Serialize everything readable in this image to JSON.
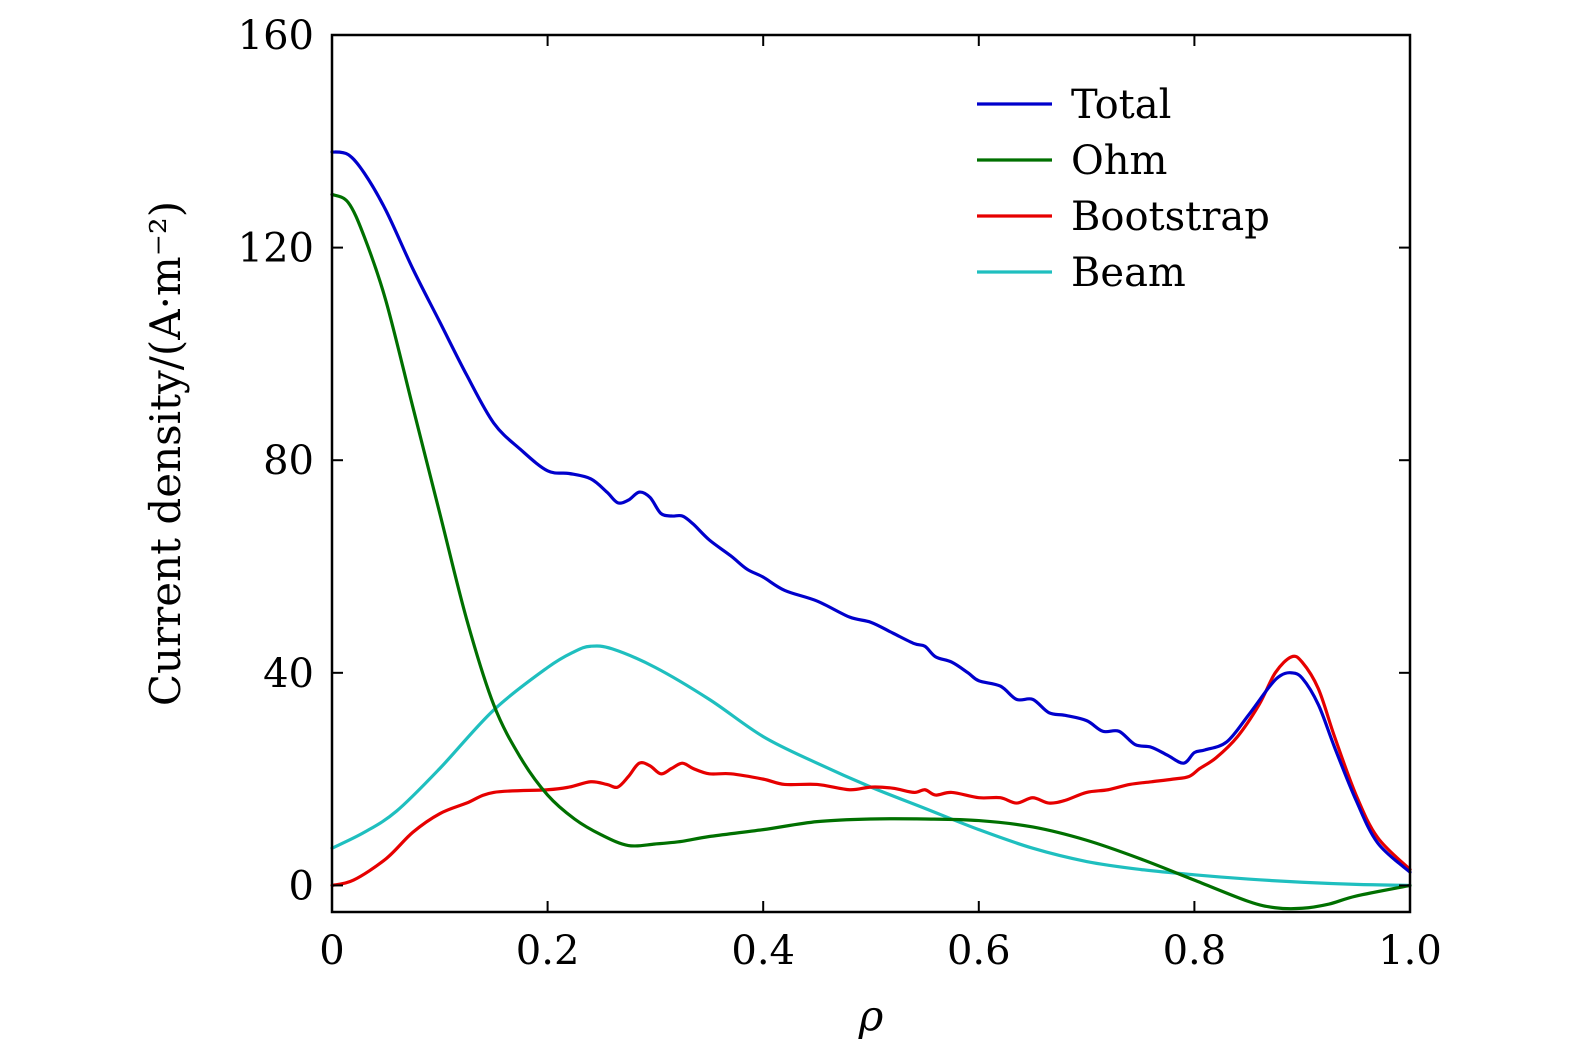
{
  "chart_data": {
    "type": "line",
    "title": "",
    "xlabel": "ρ",
    "ylabel": "Current density/(A·m⁻²)",
    "xlim": [
      0,
      1.0
    ],
    "ylim": [
      -5,
      160
    ],
    "xticks": [
      "0",
      "0.2",
      "0.4",
      "0.6",
      "0.8",
      "1.0"
    ],
    "xtick_values": [
      0,
      0.2,
      0.4,
      0.6,
      0.8,
      1.0
    ],
    "yticks": [
      "0",
      "40",
      "80",
      "120",
      "160"
    ],
    "ytick_values": [
      0,
      40,
      80,
      120,
      160
    ],
    "grid": false,
    "legend_position": "top-right",
    "series": [
      {
        "name": "Total",
        "color": "#0000cc",
        "points": [
          [
            0,
            138
          ],
          [
            0.015,
            137.5
          ],
          [
            0.03,
            134
          ],
          [
            0.05,
            127
          ],
          [
            0.075,
            116
          ],
          [
            0.1,
            106
          ],
          [
            0.125,
            96
          ],
          [
            0.15,
            87
          ],
          [
            0.175,
            82
          ],
          [
            0.2,
            78
          ],
          [
            0.22,
            77.5
          ],
          [
            0.24,
            76.5
          ],
          [
            0.255,
            74
          ],
          [
            0.265,
            72
          ],
          [
            0.275,
            72.5
          ],
          [
            0.285,
            74
          ],
          [
            0.295,
            73
          ],
          [
            0.305,
            70
          ],
          [
            0.315,
            69.5
          ],
          [
            0.325,
            69.5
          ],
          [
            0.335,
            68
          ],
          [
            0.35,
            65
          ],
          [
            0.37,
            62
          ],
          [
            0.385,
            59.5
          ],
          [
            0.4,
            58
          ],
          [
            0.42,
            55.5
          ],
          [
            0.45,
            53.5
          ],
          [
            0.48,
            50.5
          ],
          [
            0.5,
            49.5
          ],
          [
            0.52,
            47.5
          ],
          [
            0.54,
            45.5
          ],
          [
            0.55,
            45
          ],
          [
            0.56,
            43
          ],
          [
            0.575,
            42
          ],
          [
            0.59,
            40
          ],
          [
            0.6,
            38.5
          ],
          [
            0.62,
            37.5
          ],
          [
            0.635,
            35
          ],
          [
            0.65,
            35
          ],
          [
            0.665,
            32.5
          ],
          [
            0.68,
            32
          ],
          [
            0.7,
            31
          ],
          [
            0.715,
            29
          ],
          [
            0.73,
            29
          ],
          [
            0.745,
            26.5
          ],
          [
            0.76,
            26
          ],
          [
            0.775,
            24.5
          ],
          [
            0.79,
            23
          ],
          [
            0.8,
            25
          ],
          [
            0.81,
            25.5
          ],
          [
            0.83,
            27
          ],
          [
            0.85,
            32
          ],
          [
            0.87,
            37.5
          ],
          [
            0.88,
            39.5
          ],
          [
            0.89,
            40
          ],
          [
            0.9,
            39
          ],
          [
            0.915,
            34
          ],
          [
            0.93,
            26
          ],
          [
            0.95,
            16
          ],
          [
            0.97,
            8
          ],
          [
            1.0,
            2.5
          ]
        ]
      },
      {
        "name": "Ohm",
        "color": "#007000",
        "points": [
          [
            0,
            130
          ],
          [
            0.015,
            128.5
          ],
          [
            0.03,
            122
          ],
          [
            0.05,
            110
          ],
          [
            0.075,
            90
          ],
          [
            0.1,
            70
          ],
          [
            0.125,
            50
          ],
          [
            0.15,
            34
          ],
          [
            0.175,
            24
          ],
          [
            0.2,
            17
          ],
          [
            0.225,
            12.5
          ],
          [
            0.25,
            9.5
          ],
          [
            0.275,
            7.5
          ],
          [
            0.3,
            7.8
          ],
          [
            0.325,
            8.3
          ],
          [
            0.35,
            9.2
          ],
          [
            0.4,
            10.5
          ],
          [
            0.45,
            12
          ],
          [
            0.5,
            12.5
          ],
          [
            0.55,
            12.5
          ],
          [
            0.6,
            12.2
          ],
          [
            0.65,
            11
          ],
          [
            0.7,
            8.5
          ],
          [
            0.75,
            5
          ],
          [
            0.8,
            1
          ],
          [
            0.85,
            -3
          ],
          [
            0.875,
            -4.2
          ],
          [
            0.9,
            -4.3
          ],
          [
            0.925,
            -3.5
          ],
          [
            0.95,
            -2
          ],
          [
            1.0,
            0
          ]
        ]
      },
      {
        "name": "Bootstrap",
        "color": "#e60000",
        "points": [
          [
            0,
            0
          ],
          [
            0.02,
            1
          ],
          [
            0.05,
            5
          ],
          [
            0.075,
            10
          ],
          [
            0.1,
            13.5
          ],
          [
            0.125,
            15.5
          ],
          [
            0.15,
            17.5
          ],
          [
            0.2,
            18
          ],
          [
            0.22,
            18.5
          ],
          [
            0.24,
            19.5
          ],
          [
            0.255,
            19
          ],
          [
            0.265,
            18.5
          ],
          [
            0.275,
            20.5
          ],
          [
            0.285,
            23
          ],
          [
            0.295,
            22.5
          ],
          [
            0.305,
            21
          ],
          [
            0.315,
            22
          ],
          [
            0.325,
            23
          ],
          [
            0.335,
            22
          ],
          [
            0.35,
            21
          ],
          [
            0.37,
            21
          ],
          [
            0.4,
            20
          ],
          [
            0.42,
            19
          ],
          [
            0.45,
            19
          ],
          [
            0.48,
            18
          ],
          [
            0.5,
            18.5
          ],
          [
            0.52,
            18.3
          ],
          [
            0.54,
            17.5
          ],
          [
            0.55,
            18
          ],
          [
            0.56,
            17
          ],
          [
            0.575,
            17.5
          ],
          [
            0.6,
            16.5
          ],
          [
            0.62,
            16.5
          ],
          [
            0.635,
            15.5
          ],
          [
            0.65,
            16.5
          ],
          [
            0.665,
            15.5
          ],
          [
            0.68,
            16
          ],
          [
            0.7,
            17.5
          ],
          [
            0.72,
            18
          ],
          [
            0.74,
            19
          ],
          [
            0.76,
            19.5
          ],
          [
            0.78,
            20
          ],
          [
            0.795,
            20.5
          ],
          [
            0.805,
            22
          ],
          [
            0.82,
            24
          ],
          [
            0.84,
            28
          ],
          [
            0.86,
            34
          ],
          [
            0.875,
            40
          ],
          [
            0.89,
            43
          ],
          [
            0.9,
            42
          ],
          [
            0.915,
            37
          ],
          [
            0.93,
            28
          ],
          [
            0.95,
            17
          ],
          [
            0.97,
            9
          ],
          [
            1.0,
            3
          ]
        ]
      },
      {
        "name": "Beam",
        "color": "#1fbfbf",
        "points": [
          [
            0,
            7
          ],
          [
            0.03,
            10
          ],
          [
            0.06,
            14
          ],
          [
            0.1,
            22
          ],
          [
            0.15,
            33
          ],
          [
            0.2,
            41
          ],
          [
            0.225,
            44
          ],
          [
            0.24,
            45
          ],
          [
            0.26,
            44.5
          ],
          [
            0.3,
            41
          ],
          [
            0.35,
            35
          ],
          [
            0.4,
            28
          ],
          [
            0.45,
            23
          ],
          [
            0.5,
            18.5
          ],
          [
            0.55,
            14.5
          ],
          [
            0.6,
            10.5
          ],
          [
            0.65,
            7
          ],
          [
            0.7,
            4.5
          ],
          [
            0.75,
            3
          ],
          [
            0.8,
            2
          ],
          [
            0.85,
            1.2
          ],
          [
            0.9,
            0.6
          ],
          [
            0.95,
            0.2
          ],
          [
            1.0,
            0
          ]
        ]
      }
    ]
  }
}
